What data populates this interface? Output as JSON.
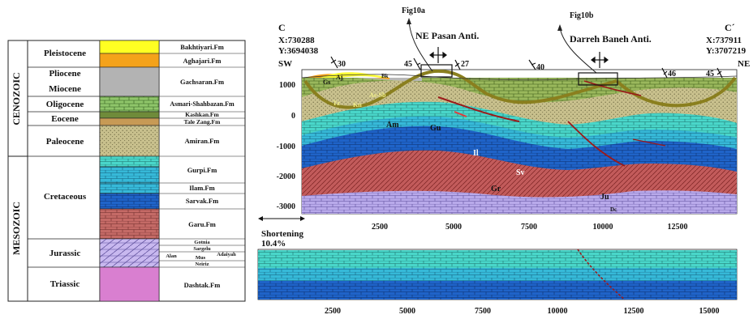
{
  "eras": [
    {
      "name": "CENOZOIC"
    },
    {
      "name": "MESOZOIC"
    }
  ],
  "epochs": [
    "Pleistocene",
    "Pliocene",
    "Miocene",
    "Oligocene",
    "Eocene",
    "Paleocene",
    "Cretaceous",
    "Jurassic",
    "Triassic"
  ],
  "formations": {
    "bakhtiyari": "Bakhtiyari.Fm",
    "aghajari": "Aghajari.Fm",
    "gachsaran": "Gachsaran.Fm",
    "asmari": "Asmari-Shahbazan.Fm",
    "kashkan": "Kashkan.Fm",
    "talezang": "Tale Zang.Fm",
    "amiran": "Amiran.Fm",
    "gurpi": "Gurpi.Fm",
    "ilam": "Ilam.Fm",
    "sarvak": "Sarvak.Fm",
    "garu": "Garu.Fm",
    "gotnia": "Gotnia",
    "sargelu": "Sargelu",
    "alan": "Alan",
    "mus": "Mus",
    "adaiyah": "Adaiyah",
    "neiriz": "Neiriz",
    "dashtak": "Dashtak.Fm"
  },
  "section": {
    "start_label": "C",
    "start_x": "X:730288",
    "start_y": "Y:3694038",
    "end_label": "C´",
    "end_x": "X:737911",
    "end_y": "Y:3707219",
    "sw": "SW",
    "ne": "NE",
    "fig_a": "Fig10a",
    "fig_b": "Fig10b",
    "anticline_a": "NE Pasan Anti.",
    "anticline_b": "Darreh Baneh Anti.",
    "dips": [
      "30",
      "45",
      "27",
      "40",
      "46",
      "45"
    ],
    "unit_labels": {
      "gs": "Gs",
      "aj": "Aj",
      "bk": "Bk",
      "assb": "As-Sb",
      "tz": "Tz",
      "kn": "Kn",
      "am": "Am",
      "gu": "Gu",
      "il": "Il",
      "sv": "Sv",
      "gr": "Gr",
      "ju": "Ju",
      "dc": "Dc"
    },
    "y_ticks": [
      "1000",
      "0",
      "-1000",
      "-2000",
      "-3000"
    ],
    "x_ticks": [
      "2500",
      "5000",
      "7500",
      "10000",
      "12500"
    ],
    "shortening_label": "Shortening",
    "shortening_value": "10.4%"
  },
  "restored": {
    "x_ticks": [
      "2500",
      "5000",
      "7500",
      "10000",
      "12500",
      "15000"
    ]
  }
}
